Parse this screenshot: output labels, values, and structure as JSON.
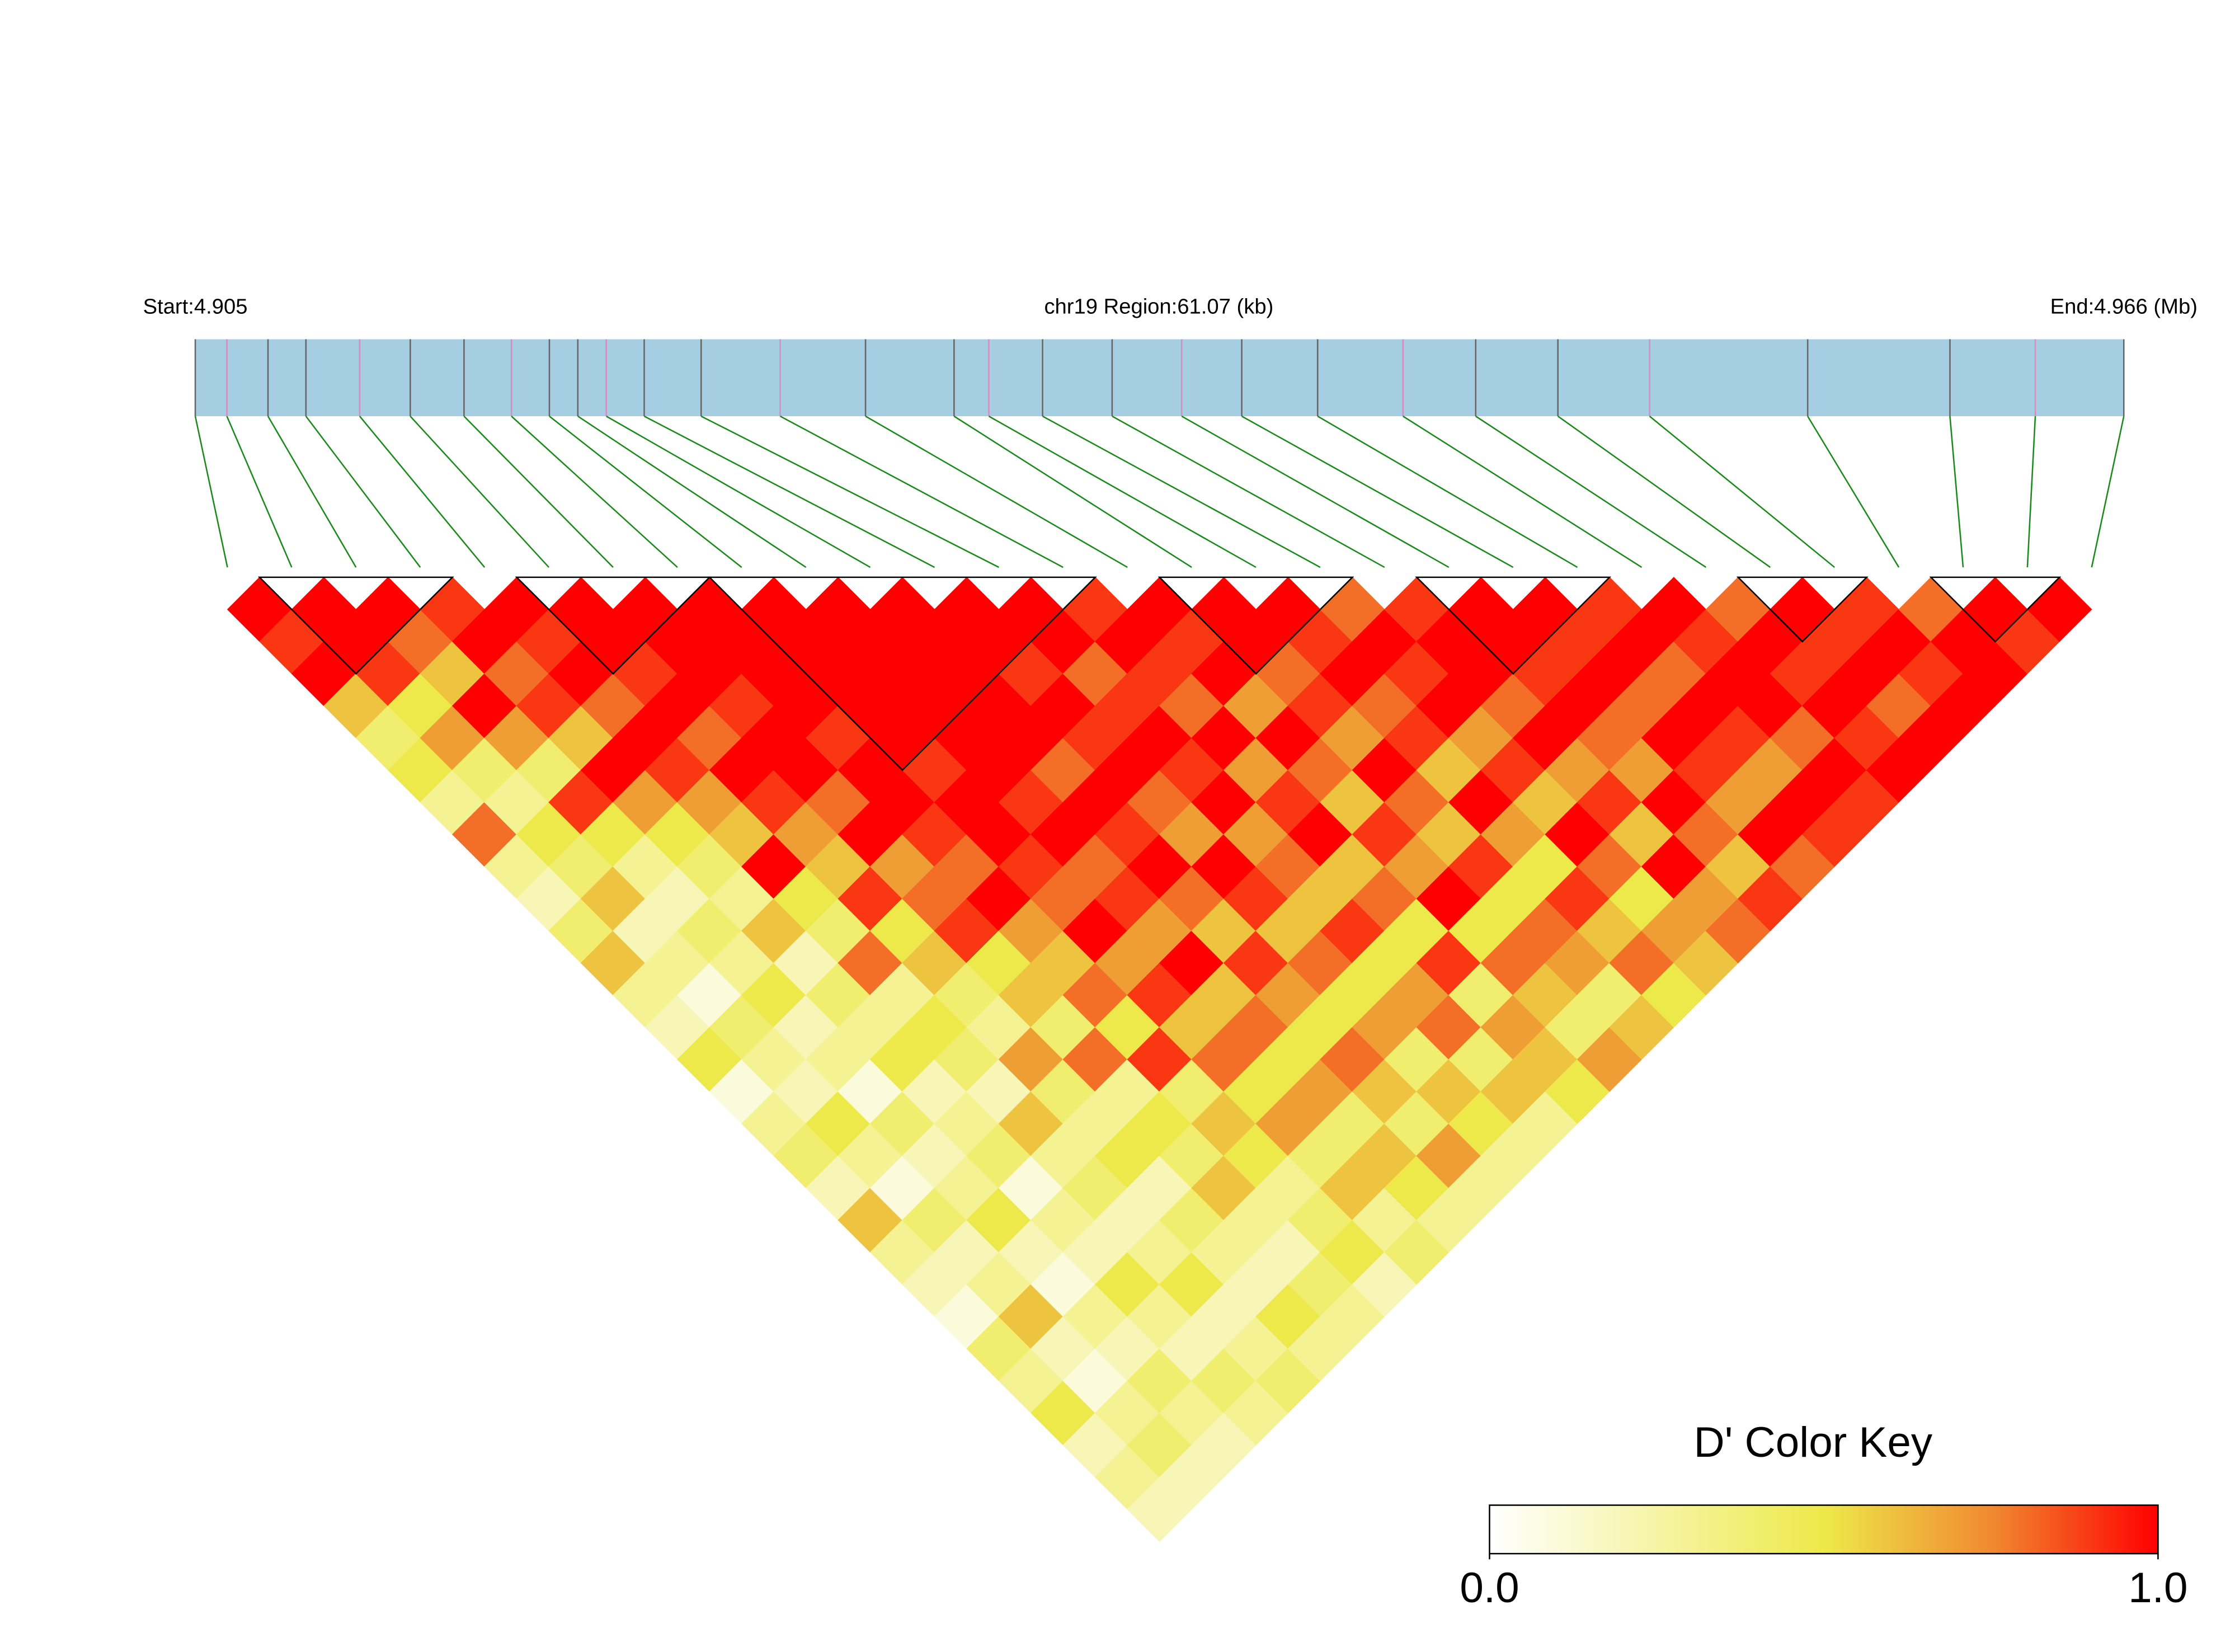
{
  "chart_data": {
    "type": "ld_heatmap",
    "start_label": "Start:4.905",
    "region_label": "chr19 Region:61.07 (kb)",
    "end_label": "End:4.966 (Mb)",
    "legend_title": "D' Color Key",
    "xlim": [
      4.905,
      4.966
    ],
    "clim": [
      0,
      1
    ],
    "colorbar_ticks": [
      {
        "value": 0,
        "label": "0.0"
      },
      {
        "value": 1,
        "label": "1.0"
      }
    ],
    "positions": [
      4.905,
      4.906,
      4.9073,
      4.9085,
      4.9102,
      4.9118,
      4.9135,
      4.915,
      4.9162,
      4.9171,
      4.918,
      4.9192,
      4.921,
      4.9235,
      4.9262,
      4.929,
      4.9301,
      4.9318,
      4.934,
      4.9362,
      4.9381,
      4.9405,
      4.9432,
      4.9455,
      4.9481,
      4.951,
      4.956,
      4.9605,
      4.9632,
      4.966
    ],
    "blocks": [
      [
        1,
        3
      ],
      [
        5,
        7
      ],
      [
        8,
        13
      ],
      [
        15,
        17
      ],
      [
        19,
        21
      ],
      [
        24,
        25
      ],
      [
        27,
        28
      ]
    ],
    "ld": [
      [
        1,
        0.9,
        1,
        0.6,
        0.4,
        0.5,
        0.3,
        0.8,
        0.3,
        0.2,
        0.4,
        0.6,
        0.3,
        0.2,
        0.5,
        0.1,
        0.3,
        0.4,
        0.2,
        0.6,
        0.3,
        0.2,
        0.1,
        0.4,
        0.3,
        0.5,
        0.2,
        0.3,
        0.2
      ],
      [
        1,
        1,
        0.9,
        0.5,
        0.7,
        0.4,
        0.3,
        0.5,
        0.4,
        0.6,
        0.2,
        0.3,
        0.1,
        0.4,
        0.3,
        0.2,
        0.5,
        0.3,
        0.1,
        0.4,
        0.2,
        0.3,
        0.6,
        0.2,
        0.1,
        0.3,
        0.4,
        0.2
      ],
      [
        1,
        0.8,
        0.6,
        1,
        0.7,
        0.4,
        0.9,
        0.5,
        0.3,
        0.2,
        0.4,
        0.3,
        0.5,
        0.2,
        0.3,
        0.1,
        0.4,
        0.2,
        0.3,
        0.5,
        0.2,
        0.1,
        0.3,
        0.2,
        0.4,
        0.3,
        0.2
      ],
      [
        0.9,
        1,
        0.8,
        0.9,
        0.6,
        1,
        0.7,
        0.5,
        0.4,
        0.3,
        0.6,
        0.2,
        0.4,
        0.3,
        0.5,
        0.2,
        0.3,
        0.4,
        0.1,
        0.3,
        0.2,
        0.5,
        0.3,
        0.2,
        0.4,
        0.3
      ],
      [
        1,
        0.9,
        1,
        0.8,
        1,
        0.9,
        0.7,
        0.6,
        1,
        0.5,
        0.4,
        0.8,
        0.3,
        0.5,
        0.4,
        0.2,
        0.6,
        0.3,
        0.4,
        0.2,
        0.3,
        0.5,
        0.2,
        0.3,
        0.4
      ],
      [
        1,
        1,
        0.9,
        1,
        0.8,
        1,
        0.9,
        0.7,
        0.6,
        0.9,
        0.5,
        0.6,
        0.4,
        0.3,
        0.7,
        0.4,
        0.3,
        0.5,
        0.2,
        0.4,
        0.3,
        0.2,
        0.5,
        0.3
      ],
      [
        1,
        1,
        1,
        0.9,
        1,
        1,
        0.8,
        1,
        0.7,
        0.8,
        0.9,
        0.5,
        0.6,
        0.4,
        0.8,
        0.3,
        0.5,
        0.4,
        0.6,
        0.3,
        0.2,
        0.4,
        0.3
      ],
      [
        1,
        1,
        1,
        1,
        0.9,
        1,
        1,
        0.9,
        0.8,
        1,
        0.7,
        0.6,
        0.8,
        0.5,
        0.9,
        0.4,
        0.6,
        0.5,
        0.3,
        0.4,
        0.5,
        0.2
      ],
      [
        1,
        1,
        1,
        1,
        1,
        0.9,
        1,
        1,
        0.9,
        0.8,
        1,
        0.7,
        0.9,
        0.6,
        0.8,
        0.5,
        0.7,
        0.4,
        0.6,
        0.3,
        0.4
      ],
      [
        1,
        1,
        1,
        1,
        1,
        1,
        0.9,
        1,
        0.8,
        0.9,
        0.7,
        1,
        0.6,
        0.8,
        0.5,
        0.7,
        0.4,
        0.6,
        0.5,
        0.3
      ],
      [
        1,
        1,
        1,
        1,
        1,
        0.8,
        1,
        0.9,
        1,
        0.8,
        0.6,
        0.9,
        0.7,
        0.5,
        0.8,
        0.6,
        0.4,
        0.7,
        0.3
      ],
      [
        1,
        1,
        0.9,
        1,
        0.9,
        1,
        0.8,
        0.7,
        1,
        0.9,
        0.6,
        0.8,
        0.5,
        0.7,
        0.4,
        0.6,
        0.5,
        0.3
      ],
      [
        1,
        1,
        0.8,
        0.9,
        1,
        0.9,
        1,
        0.7,
        0.8,
        0.6,
        0.9,
        0.5,
        0.7,
        0.8,
        0.4,
        0.6,
        0.3
      ],
      [
        0.9,
        1,
        0.9,
        0.8,
        1,
        0.7,
        0.9,
        1,
        0.6,
        0.8,
        0.5,
        0.9,
        0.4,
        0.7,
        0.6,
        0.5
      ],
      [
        1,
        0.9,
        1,
        0.7,
        1,
        0.8,
        0.6,
        0.9,
        0.7,
        1,
        0.5,
        0.8,
        0.6,
        0.4,
        0.7
      ],
      [
        1,
        1,
        0.8,
        0.9,
        0.7,
        1,
        0.8,
        0.6,
        0.9,
        0.5,
        0.8,
        0.7,
        0.4,
        0.6
      ],
      [
        1,
        0.9,
        1,
        0.8,
        0.9,
        0.6,
        1,
        0.7,
        0.5,
        0.9,
        0.6,
        0.8,
        0.5
      ],
      [
        0.8,
        1,
        0.9,
        1,
        0.7,
        0.9,
        0.6,
        1,
        0.8,
        0.5,
        0.7,
        0.6
      ],
      [
        0.9,
        1,
        1,
        0.8,
        1,
        0.7,
        0.9,
        0.6,
        1,
        0.7,
        0.8
      ],
      [
        1,
        1,
        0.9,
        1,
        0.8,
        0.7,
        1,
        0.8,
        0.6,
        0.9
      ],
      [
        1,
        0.9,
        1,
        0.8,
        1,
        0.9,
        0.7,
        1,
        0.8
      ],
      [
        0.9,
        1,
        0.8,
        1,
        0.9,
        0.7,
        1,
        0.9
      ],
      [
        1,
        0.9,
        1,
        1,
        0.8,
        1,
        0.9
      ],
      [
        0.8,
        1,
        0.9,
        1,
        0.9,
        1
      ],
      [
        1,
        0.9,
        1,
        0.8,
        1
      ],
      [
        0.9,
        1,
        0.9,
        1
      ],
      [
        0.8,
        1,
        1
      ],
      [
        1,
        0.9
      ],
      [
        1
      ]
    ]
  }
}
